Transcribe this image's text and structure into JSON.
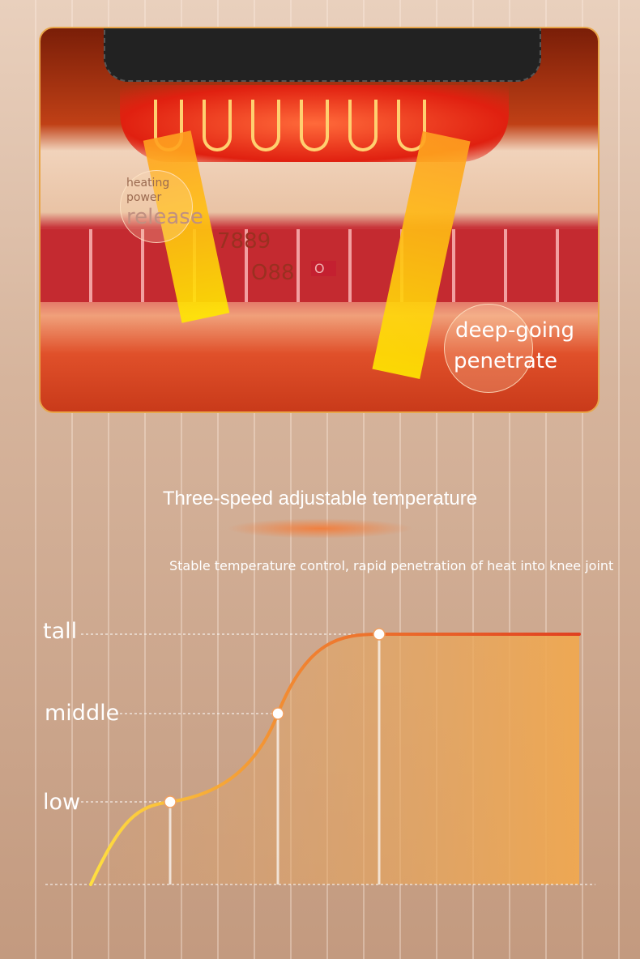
{
  "illustration": {
    "callout_small_1": "heating",
    "callout_small_2": "power",
    "callout_large": "release",
    "fragment_1": "7889",
    "fragment_2": "O88",
    "fragment_3": "O",
    "callout_right_1": "deep-going",
    "callout_right_2": "penetrate"
  },
  "heading": {
    "title": "Three-speed adjustable temperature",
    "subtitle": "Stable temperature control, rapid penetration of heat into knee joint"
  },
  "chart_data": {
    "type": "line",
    "levels": [
      "low",
      "middle",
      "tall"
    ],
    "points": [
      {
        "label": "low",
        "level": 1
      },
      {
        "label": "middle",
        "level": 2
      },
      {
        "label": "tall",
        "level": 3
      }
    ],
    "line_colors": [
      "#ffe040",
      "#e85a20"
    ],
    "fill_color": "#f0a850"
  }
}
